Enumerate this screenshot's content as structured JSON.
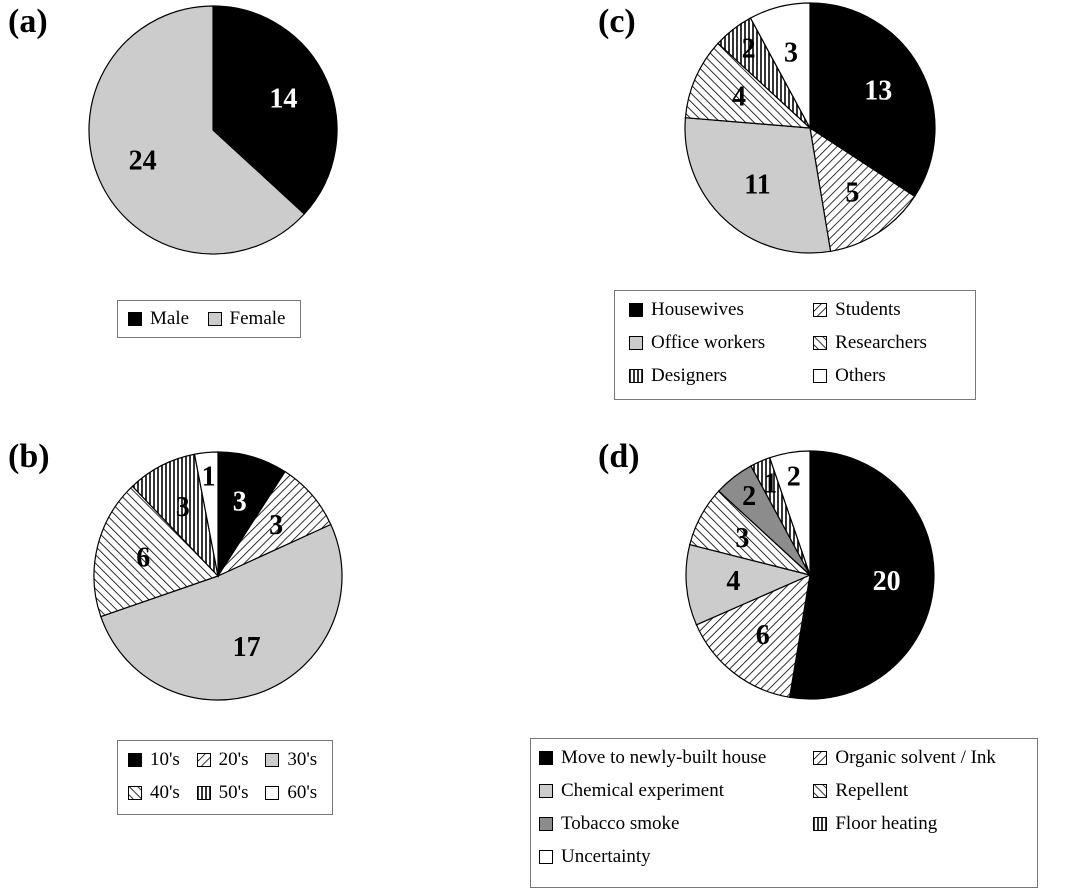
{
  "chart_data": [
    {
      "id": "a",
      "panel_label": "(a)",
      "type": "pie",
      "slices": [
        {
          "label": "Male",
          "value": 14,
          "fill": "black",
          "text_color": "#ffffff"
        },
        {
          "label": "Female",
          "value": 24,
          "fill": "gray",
          "text_color": "#000000"
        }
      ],
      "legend_columns": 2
    },
    {
      "id": "b",
      "panel_label": "(b)",
      "type": "pie",
      "slices": [
        {
          "label": "10's",
          "value": 3,
          "fill": "black",
          "text_color": "#ffffff"
        },
        {
          "label": "20's",
          "value": 3,
          "fill": "diag-right",
          "text_color": "#000000"
        },
        {
          "label": "30's",
          "value": 17,
          "fill": "gray",
          "text_color": "#000000"
        },
        {
          "label": "40's",
          "value": 6,
          "fill": "diag-left",
          "text_color": "#000000"
        },
        {
          "label": "50's",
          "value": 3,
          "fill": "vertical",
          "text_color": "#000000"
        },
        {
          "label": "60's",
          "value": 1,
          "fill": "white",
          "text_color": "#000000"
        }
      ],
      "legend_columns": 3
    },
    {
      "id": "c",
      "panel_label": "(c)",
      "type": "pie",
      "slices": [
        {
          "label": "Housewives",
          "value": 13,
          "fill": "black",
          "text_color": "#ffffff"
        },
        {
          "label": "Students",
          "value": 5,
          "fill": "diag-right",
          "text_color": "#000000"
        },
        {
          "label": "Office workers",
          "value": 11,
          "fill": "gray",
          "text_color": "#000000"
        },
        {
          "label": "Researchers",
          "value": 4,
          "fill": "diag-left",
          "text_color": "#000000"
        },
        {
          "label": "Designers",
          "value": 2,
          "fill": "vertical",
          "text_color": "#000000"
        },
        {
          "label": "Others",
          "value": 3,
          "fill": "white",
          "text_color": "#000000"
        }
      ],
      "legend_columns": 2
    },
    {
      "id": "d",
      "panel_label": "(d)",
      "type": "pie",
      "slices": [
        {
          "label": "Move to newly-built house",
          "value": 20,
          "fill": "black",
          "text_color": "#ffffff"
        },
        {
          "label": "Organic solvent / Ink",
          "value": 6,
          "fill": "diag-right",
          "text_color": "#000000"
        },
        {
          "label": "Chemical experiment",
          "value": 4,
          "fill": "gray",
          "text_color": "#000000"
        },
        {
          "label": "Repellent",
          "value": 3,
          "fill": "diag-left",
          "text_color": "#000000"
        },
        {
          "label": "Tobacco smoke",
          "value": 2,
          "fill": "darkgray",
          "text_color": "#000000"
        },
        {
          "label": "Floor heating",
          "value": 1,
          "fill": "vertical",
          "text_color": "#000000"
        },
        {
          "label": "Uncertainty",
          "value": 2,
          "fill": "white",
          "text_color": "#000000"
        }
      ],
      "legend_columns": 2
    }
  ],
  "colors": {
    "black": "#000000",
    "gray": "#cccccc",
    "darkgray": "#8c8c8c",
    "white": "#ffffff",
    "outline": "#000000"
  }
}
